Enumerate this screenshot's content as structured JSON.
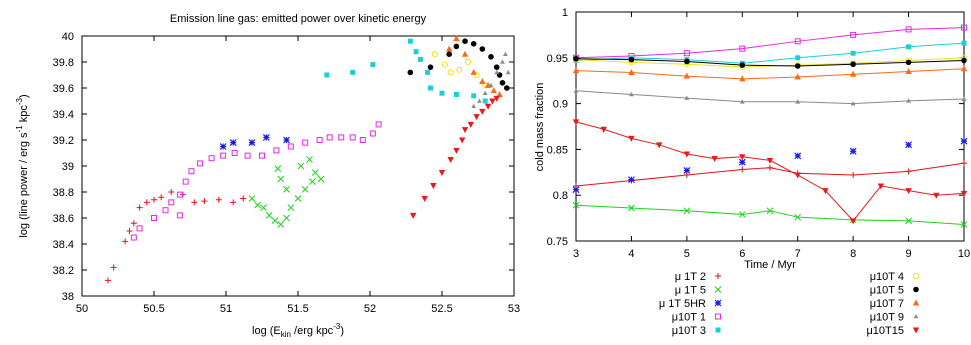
{
  "series_style": [
    {
      "name": "μ 1T 2",
      "color": "#e8101a",
      "marker": "plus"
    },
    {
      "name": "μ 1T 5",
      "color": "#1fd21f",
      "marker": "cross"
    },
    {
      "name": "μ 1T 5HR",
      "color": "#1a1ae8",
      "marker": "star"
    },
    {
      "name": "μ10T 1",
      "color": "#e628e6",
      "marker": "square-open"
    },
    {
      "name": "μ10T 3",
      "color": "#16d2d8",
      "marker": "square"
    },
    {
      "name": "μ10T 4",
      "color": "#f2e21a",
      "marker": "circle-open"
    },
    {
      "name": "μ10T 5",
      "color": "#000000",
      "marker": "circle"
    },
    {
      "name": "μ10T 7",
      "color": "#ff6a1a",
      "marker": "triangle-up"
    },
    {
      "name": "μ10T 9",
      "color": "#8a8a8a",
      "marker": "triangle-up-small"
    },
    {
      "name": "μ10T15",
      "color": "#e81a1a",
      "marker": "triangle-down"
    }
  ],
  "chart_data": [
    {
      "type": "scatter",
      "title": "Emission line gas: emitted power over kinetic energy",
      "xlabel": "log (E_kin /erg kpc^-3)",
      "ylabel": "log (line power / erg s^-1 kpc^-3)",
      "xlim": [
        50,
        53
      ],
      "ylim": [
        38,
        40
      ],
      "xticks": [
        "50",
        "50.5",
        "51",
        "51.5",
        "52",
        "52.5",
        "53"
      ],
      "yticks": [
        "38",
        "38.2",
        "38.4",
        "38.6",
        "38.8",
        "39",
        "39.2",
        "39.4",
        "39.6",
        "39.8",
        "40"
      ],
      "series": [
        {
          "name": "μ 1T 2",
          "points": [
            [
              50.18,
              38.12
            ],
            [
              50.22,
              38.22
            ],
            [
              50.3,
              38.42
            ],
            [
              50.33,
              38.5
            ],
            [
              50.36,
              38.56
            ],
            [
              50.4,
              38.68
            ],
            [
              50.45,
              38.72
            ],
            [
              50.5,
              38.74
            ],
            [
              50.55,
              38.76
            ],
            [
              50.62,
              38.8
            ],
            [
              50.7,
              38.78
            ],
            [
              50.78,
              38.72
            ],
            [
              50.85,
              38.73
            ],
            [
              50.95,
              38.74
            ],
            [
              51.05,
              38.72
            ],
            [
              51.12,
              38.75
            ]
          ]
        },
        {
          "name": "μ 1T 5",
          "points": [
            [
              51.18,
              38.75
            ],
            [
              51.22,
              38.7
            ],
            [
              51.26,
              38.68
            ],
            [
              51.3,
              38.62
            ],
            [
              51.34,
              38.58
            ],
            [
              51.38,
              38.55
            ],
            [
              51.42,
              38.6
            ],
            [
              51.45,
              38.68
            ],
            [
              51.5,
              38.75
            ],
            [
              51.55,
              38.82
            ],
            [
              51.6,
              38.88
            ],
            [
              51.66,
              38.9
            ],
            [
              51.42,
              38.82
            ],
            [
              51.38,
              38.9
            ],
            [
              51.36,
              38.98
            ],
            [
              51.52,
              39.0
            ],
            [
              51.58,
              39.05
            ],
            [
              51.62,
              38.95
            ]
          ]
        },
        {
          "name": "μ 1T 5HR",
          "points": [
            [
              50.98,
              39.15
            ],
            [
              51.05,
              39.18
            ],
            [
              51.18,
              39.18
            ],
            [
              51.28,
              39.22
            ],
            [
              51.42,
              39.2
            ]
          ]
        },
        {
          "name": "μ10T 1",
          "points": [
            [
              50.36,
              38.45
            ],
            [
              50.4,
              38.52
            ],
            [
              50.5,
              38.6
            ],
            [
              50.58,
              38.66
            ],
            [
              50.62,
              38.72
            ],
            [
              50.68,
              38.78
            ],
            [
              50.72,
              38.88
            ],
            [
              50.76,
              38.96
            ],
            [
              50.82,
              39.02
            ],
            [
              50.9,
              39.06
            ],
            [
              50.98,
              39.08
            ],
            [
              51.06,
              39.1
            ],
            [
              51.15,
              39.08
            ],
            [
              51.25,
              39.08
            ],
            [
              51.35,
              39.12
            ],
            [
              51.45,
              39.15
            ],
            [
              51.55,
              39.18
            ],
            [
              51.65,
              39.2
            ],
            [
              51.72,
              39.22
            ],
            [
              51.8,
              39.22
            ],
            [
              51.88,
              39.22
            ],
            [
              51.95,
              39.2
            ],
            [
              52.02,
              39.25
            ],
            [
              52.06,
              39.32
            ],
            [
              50.68,
              38.62
            ]
          ]
        },
        {
          "name": "μ10T 3",
          "points": [
            [
              51.7,
              39.7
            ],
            [
              51.88,
              39.72
            ],
            [
              52.02,
              39.78
            ],
            [
              52.28,
              39.96
            ],
            [
              52.32,
              39.88
            ],
            [
              52.35,
              39.82
            ],
            [
              52.4,
              39.72
            ],
            [
              52.42,
              39.6
            ],
            [
              52.5,
              39.56
            ],
            [
              52.6,
              39.55
            ],
            [
              52.72,
              39.54
            ],
            [
              52.8,
              39.5
            ]
          ]
        },
        {
          "name": "μ10T 4",
          "points": [
            [
              52.45,
              39.86
            ],
            [
              52.52,
              39.78
            ],
            [
              52.56,
              39.72
            ],
            [
              52.62,
              39.74
            ],
            [
              52.68,
              39.8
            ],
            [
              52.74,
              39.7
            ],
            [
              52.8,
              39.62
            ]
          ]
        },
        {
          "name": "μ10T 5",
          "points": [
            [
              52.28,
              39.72
            ],
            [
              52.42,
              39.76
            ],
            [
              52.55,
              39.86
            ],
            [
              52.6,
              39.92
            ],
            [
              52.66,
              39.96
            ],
            [
              52.72,
              39.94
            ],
            [
              52.78,
              39.9
            ],
            [
              52.84,
              39.84
            ],
            [
              52.88,
              39.76
            ],
            [
              52.9,
              39.7
            ],
            [
              52.92,
              39.64
            ],
            [
              52.95,
              39.6
            ]
          ]
        },
        {
          "name": "μ10T 7",
          "points": [
            [
              52.55,
              39.9
            ],
            [
              52.6,
              39.98
            ],
            [
              52.66,
              39.86
            ],
            [
              52.72,
              39.72
            ],
            [
              52.78,
              39.65
            ],
            [
              52.82,
              39.62
            ],
            [
              52.86,
              39.58
            ],
            [
              52.9,
              39.55
            ]
          ]
        },
        {
          "name": "μ10T 9",
          "points": [
            [
              52.72,
              39.46
            ],
            [
              52.76,
              39.5
            ],
            [
              52.8,
              39.56
            ],
            [
              52.84,
              39.62
            ],
            [
              52.88,
              39.72
            ],
            [
              52.92,
              39.8
            ],
            [
              52.94,
              39.86
            ],
            [
              52.96,
              39.72
            ]
          ]
        },
        {
          "name": "μ10T15",
          "points": [
            [
              52.3,
              38.62
            ],
            [
              52.38,
              38.75
            ],
            [
              52.44,
              38.85
            ],
            [
              52.5,
              38.95
            ],
            [
              52.56,
              39.05
            ],
            [
              52.6,
              39.12
            ],
            [
              52.64,
              39.2
            ],
            [
              52.66,
              39.28
            ],
            [
              52.7,
              39.32
            ],
            [
              52.74,
              39.38
            ],
            [
              52.78,
              39.42
            ],
            [
              52.82,
              39.46
            ],
            [
              52.85,
              39.5
            ],
            [
              52.88,
              39.52
            ]
          ]
        }
      ]
    },
    {
      "type": "line",
      "xlabel": "Time / Myr",
      "ylabel": "cold mass fraction",
      "xlim": [
        3,
        10
      ],
      "ylim": [
        0.75,
        1
      ],
      "xticks": [
        "3",
        "4",
        "5",
        "6",
        "7",
        "8",
        "9",
        "10"
      ],
      "yticks": [
        "0.75",
        "0.8",
        "0.85",
        "0.9",
        "0.95",
        "1"
      ],
      "series": [
        {
          "name": "μ 1T 2",
          "x": [
            3,
            4,
            5,
            6,
            6.5,
            7,
            8,
            9,
            10
          ],
          "values": [
            0.81,
            0.816,
            0.822,
            0.828,
            0.83,
            0.824,
            0.822,
            0.826,
            0.835
          ]
        },
        {
          "name": "μ 1T 5",
          "x": [
            3,
            4,
            5,
            6,
            6.5,
            7,
            8,
            9,
            10
          ],
          "values": [
            0.789,
            0.786,
            0.783,
            0.779,
            0.783,
            0.776,
            0.773,
            0.772,
            0.768
          ]
        },
        {
          "name": "μ 1T 5HR",
          "x": [
            3,
            4,
            5,
            6,
            7,
            8,
            9,
            10
          ],
          "values": [
            0.806,
            0.817,
            0.827,
            0.836,
            0.843,
            0.848,
            0.855,
            0.859
          ]
        },
        {
          "name": "μ10T 1",
          "x": [
            3,
            4,
            5,
            6,
            7,
            8,
            9,
            10
          ],
          "values": [
            0.95,
            0.952,
            0.955,
            0.96,
            0.968,
            0.975,
            0.981,
            0.983
          ]
        },
        {
          "name": "μ10T 3",
          "x": [
            3,
            4,
            5,
            6,
            7,
            8,
            9,
            10
          ],
          "values": [
            0.947,
            0.95,
            0.948,
            0.944,
            0.95,
            0.955,
            0.962,
            0.966
          ]
        },
        {
          "name": "μ10T 4",
          "x": [
            3,
            4,
            5,
            6,
            7,
            8,
            9,
            10
          ],
          "values": [
            0.948,
            0.945,
            0.943,
            0.94,
            0.942,
            0.944,
            0.947,
            0.95
          ]
        },
        {
          "name": "μ10T 5",
          "x": [
            3,
            4,
            5,
            6,
            7,
            8,
            9,
            10
          ],
          "values": [
            0.949,
            0.948,
            0.946,
            0.942,
            0.941,
            0.943,
            0.945,
            0.947
          ]
        },
        {
          "name": "μ10T 7",
          "x": [
            3,
            4,
            5,
            6,
            7,
            8,
            9,
            10
          ],
          "values": [
            0.936,
            0.934,
            0.93,
            0.927,
            0.929,
            0.932,
            0.935,
            0.938
          ]
        },
        {
          "name": "μ10T 9",
          "x": [
            3,
            4,
            5,
            6,
            7,
            8,
            9,
            10
          ],
          "values": [
            0.914,
            0.91,
            0.906,
            0.902,
            0.902,
            0.9,
            0.903,
            0.905
          ]
        },
        {
          "name": "μ10T15",
          "x": [
            3,
            3.5,
            4,
            4.5,
            5,
            5.5,
            6,
            6.5,
            7,
            7.5,
            8,
            8.5,
            9,
            9.5,
            10
          ],
          "values": [
            0.88,
            0.872,
            0.862,
            0.855,
            0.845,
            0.84,
            0.842,
            0.838,
            0.822,
            0.805,
            0.772,
            0.81,
            0.805,
            0.8,
            0.802
          ]
        }
      ]
    }
  ]
}
